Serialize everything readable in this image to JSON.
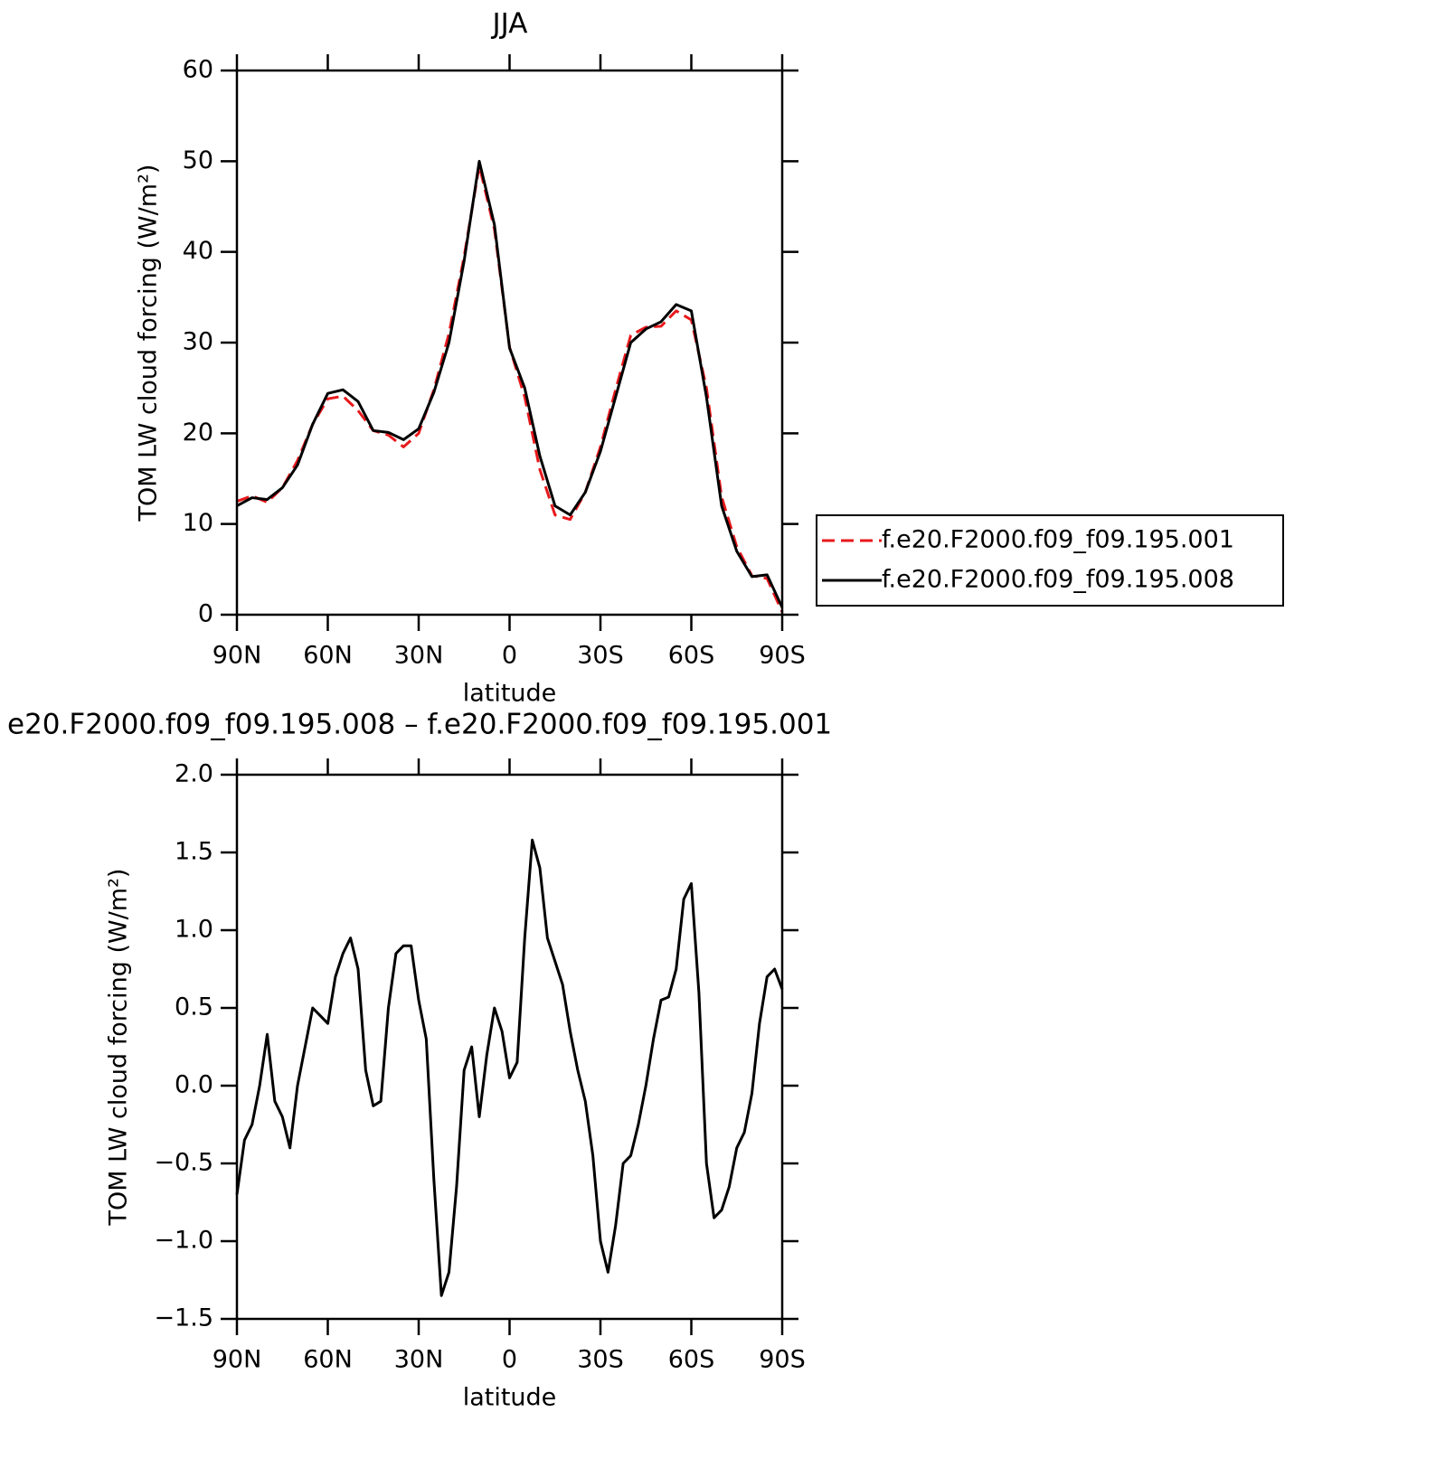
{
  "chart_data": [
    {
      "type": "line",
      "title": "JJA",
      "xlabel": "latitude",
      "ylabel": "TOM LW cloud forcing (W/m²)",
      "x": [
        90,
        85,
        80,
        75,
        70,
        65,
        60,
        55,
        50,
        45,
        40,
        35,
        30,
        25,
        20,
        15,
        10,
        5,
        0,
        -5,
        -10,
        -15,
        -20,
        -25,
        -30,
        -35,
        -40,
        -45,
        -50,
        -55,
        -60,
        -65,
        -70,
        -75,
        -80,
        -85,
        -90
      ],
      "series": [
        {
          "name": "f.e20.F2000.f09_f09.195.001",
          "color": "#e8191c",
          "dashed": true,
          "values": [
            12.5,
            13.1,
            12.4,
            14,
            17,
            21,
            23.8,
            24.1,
            22.5,
            20.3,
            19.8,
            18.5,
            20,
            24.8,
            31,
            39.5,
            49.5,
            42.5,
            29.5,
            24,
            16,
            11,
            10.5,
            13.5,
            18.5,
            24.8,
            30.8,
            31.7,
            31.8,
            33.5,
            32.5,
            25,
            13,
            7.5,
            4.3,
            4,
            0.3
          ]
        },
        {
          "name": "f.e20.F2000.f09_f09.195.008",
          "color": "#000000",
          "dashed": false,
          "values": [
            12,
            12.9,
            12.7,
            14,
            16.5,
            21,
            24.4,
            24.8,
            23.5,
            20.3,
            20.1,
            19.3,
            20.5,
            24.5,
            30,
            39,
            50,
            43,
            29.4,
            25,
            17.5,
            12,
            11,
            13.5,
            18,
            24,
            30,
            31.5,
            32.3,
            34.2,
            33.5,
            24,
            12,
            7,
            4.2,
            4.4,
            0.8
          ]
        }
      ],
      "xlim": [
        90,
        -90
      ],
      "xticks": [
        {
          "value": 90,
          "label": "90N"
        },
        {
          "value": 60,
          "label": "60N"
        },
        {
          "value": 30,
          "label": "30N"
        },
        0,
        {
          "value": -30,
          "label": "30S"
        },
        {
          "value": -60,
          "label": "60S"
        },
        {
          "value": -90,
          "label": "90S"
        }
      ],
      "ylim": [
        0,
        60
      ],
      "yticks": [
        0,
        10,
        20,
        30,
        40,
        50,
        60
      ],
      "legend": "right"
    },
    {
      "type": "line",
      "title": "e20.F2000.f09_f09.195.008 – f.e20.F2000.f09_f09.195.001",
      "xlabel": "latitude",
      "ylabel": "TOM LW cloud forcing (W/m²)",
      "x": [
        90,
        87.5,
        85,
        82.5,
        80,
        77.5,
        75,
        72.5,
        70,
        67.5,
        65,
        62.5,
        60,
        57.5,
        55,
        52.5,
        50,
        47.5,
        45,
        42.5,
        40,
        37.5,
        35,
        32.5,
        30,
        27.5,
        25,
        22.5,
        20,
        17.5,
        15,
        12.5,
        10,
        7.5,
        5,
        2.5,
        0,
        -2.5,
        -5,
        -7.5,
        -10,
        -12.5,
        -15,
        -17.5,
        -20,
        -22.5,
        -25,
        -27.5,
        -30,
        -32.5,
        -35,
        -37.5,
        -40,
        -42.5,
        -45,
        -47.5,
        -50,
        -52.5,
        -55,
        -57.5,
        -60,
        -62.5,
        -65,
        -67.5,
        -70,
        -72.5,
        -75,
        -77.5,
        -80,
        -82.5,
        -85,
        -87.5,
        -90
      ],
      "values": [
        -0.7,
        -0.35,
        -0.25,
        0.0,
        0.33,
        -0.1,
        -0.2,
        -0.4,
        0.0,
        0.25,
        0.5,
        0.45,
        0.4,
        0.7,
        0.85,
        0.95,
        0.75,
        0.1,
        -0.13,
        -0.1,
        0.5,
        0.85,
        0.9,
        0.9,
        0.55,
        0.3,
        -0.6,
        -1.35,
        -1.2,
        -0.65,
        0.1,
        0.25,
        -0.2,
        0.2,
        0.5,
        0.35,
        0.05,
        0.15,
        0.95,
        1.58,
        1.4,
        0.95,
        0.8,
        0.65,
        0.35,
        0.1,
        -0.1,
        -0.45,
        -1.0,
        -1.2,
        -0.9,
        -0.5,
        -0.45,
        -0.25,
        0.0,
        0.3,
        0.55,
        0.57,
        0.75,
        1.2,
        1.3,
        0.6,
        -0.5,
        -0.85,
        -0.8,
        -0.65,
        -0.4,
        -0.3,
        -0.05,
        0.4,
        0.7,
        0.75,
        0.62
      ],
      "color": "#000000",
      "xlim": [
        90,
        -90
      ],
      "xticks": [
        {
          "value": 90,
          "label": "90N"
        },
        {
          "value": 60,
          "label": "60N"
        },
        {
          "value": 30,
          "label": "30N"
        },
        0,
        {
          "value": -30,
          "label": "30S"
        },
        {
          "value": -60,
          "label": "60S"
        },
        {
          "value": -90,
          "label": "90S"
        }
      ],
      "ylim": [
        -1.5,
        2.0
      ],
      "yticks": [
        {
          "value": -1.5,
          "label": "−1.5"
        },
        {
          "value": -1.0,
          "label": "−1.0"
        },
        {
          "value": -0.5,
          "label": "−0.5"
        },
        {
          "value": 0.0,
          "label": "0.0"
        },
        {
          "value": 0.5,
          "label": "0.5"
        },
        {
          "value": 1.0,
          "label": "1.0"
        },
        {
          "value": 1.5,
          "label": "1.5"
        },
        {
          "value": 2.0,
          "label": "2.0"
        }
      ]
    }
  ]
}
